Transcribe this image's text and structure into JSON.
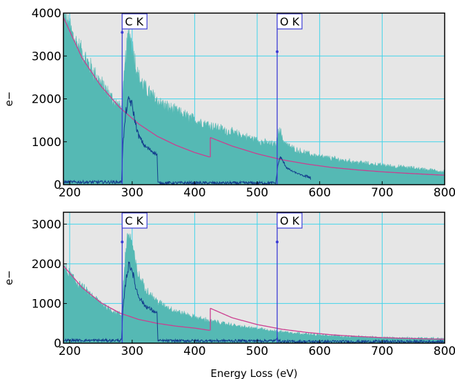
{
  "chart_data": [
    {
      "type": "area",
      "panel": "top",
      "xlabel": "",
      "ylabel": "e−",
      "xlim": [
        190,
        800
      ],
      "ylim": [
        0,
        4000
      ],
      "x_ticks": [
        "200",
        "300",
        "400",
        "500",
        "600",
        "700",
        "800"
      ],
      "y_ticks": [
        "0",
        "1000",
        "2000",
        "3000",
        "4000"
      ],
      "grid": true,
      "edges": [
        {
          "label": "C K",
          "energy": 284,
          "marker_value": 3550
        },
        {
          "label": "O K",
          "energy": 532,
          "marker_value": 3100
        }
      ],
      "series": [
        {
          "kind": "spectrum",
          "color": "#55b9b4",
          "x": [
            190,
            210,
            230,
            250,
            270,
            283,
            286,
            290,
            295,
            300,
            305,
            310,
            320,
            330,
            340,
            350,
            370,
            400,
            425,
            450,
            480,
            510,
            530,
            536,
            540,
            550,
            560,
            580,
            600,
            640,
            680,
            720,
            760,
            800
          ],
          "values": [
            3900,
            3300,
            2800,
            2350,
            1950,
            1750,
            2200,
            3000,
            3550,
            3250,
            2850,
            2500,
            2250,
            2100,
            1950,
            1850,
            1700,
            1500,
            1380,
            1250,
            1120,
            980,
            920,
            1350,
            1050,
            900,
            820,
            720,
            650,
            560,
            480,
            420,
            370,
            300
          ]
        },
        {
          "kind": "background-fit",
          "color": "#cc3d8f",
          "x": [
            190,
            220,
            250,
            280,
            310,
            340,
            370,
            400,
            425
          ],
          "values": [
            3900,
            2950,
            2300,
            1800,
            1420,
            1130,
            920,
            750,
            640
          ]
        },
        {
          "kind": "background-fit",
          "color": "#cc3d8f",
          "x": [
            425,
            460,
            500,
            540,
            580,
            620,
            660,
            700,
            740,
            780,
            800
          ],
          "values": [
            1100,
            900,
            720,
            580,
            480,
            400,
            345,
            300,
            265,
            235,
            220
          ]
        },
        {
          "kind": "edge-signal",
          "color": "#123c8c",
          "x": [
            190,
            240,
            283,
            285,
            290,
            295,
            300,
            305,
            310,
            320,
            330,
            340,
            341,
            400,
            530,
            533,
            537,
            541,
            547,
            555,
            565,
            575,
            585,
            586
          ],
          "values": [
            60,
            60,
            60,
            900,
            1700,
            2000,
            1850,
            1450,
            1150,
            900,
            800,
            700,
            40,
            40,
            40,
            450,
            650,
            550,
            400,
            320,
            260,
            200,
            180,
            30
          ]
        }
      ]
    },
    {
      "type": "area",
      "panel": "bottom",
      "xlabel": "Energy Loss (eV)",
      "ylabel": "e−",
      "xlim": [
        190,
        800
      ],
      "ylim": [
        0,
        3300
      ],
      "x_ticks": [
        "200",
        "300",
        "400",
        "500",
        "600",
        "700",
        "800"
      ],
      "y_ticks": [
        "0",
        "1000",
        "2000",
        "3000"
      ],
      "grid": true,
      "edges": [
        {
          "label": "C K",
          "energy": 284,
          "marker_value": 2550
        },
        {
          "label": "O K",
          "energy": 532,
          "marker_value": 2550
        }
      ],
      "series": [
        {
          "kind": "spectrum",
          "color": "#55b9b4",
          "x": [
            190,
            210,
            230,
            250,
            270,
            283,
            286,
            290,
            295,
            300,
            305,
            310,
            320,
            330,
            340,
            350,
            370,
            400,
            425,
            450,
            480,
            510,
            530,
            550,
            580,
            600,
            640,
            680,
            720,
            760,
            800
          ],
          "values": [
            1900,
            1550,
            1250,
            1000,
            800,
            700,
            1500,
            2400,
            2750,
            2500,
            2000,
            1700,
            1400,
            1200,
            1050,
            950,
            800,
            650,
            560,
            480,
            400,
            340,
            300,
            270,
            230,
            200,
            170,
            150,
            130,
            120,
            110
          ]
        },
        {
          "kind": "background-fit",
          "color": "#cc3d8f",
          "x": [
            190,
            220,
            250,
            280,
            310,
            340,
            370,
            400,
            425
          ],
          "values": [
            1950,
            1400,
            1020,
            760,
            600,
            500,
            430,
            380,
            320
          ]
        },
        {
          "kind": "background-fit",
          "color": "#cc3d8f",
          "x": [
            425,
            460,
            500,
            540,
            580,
            620,
            660,
            700,
            740,
            780,
            800
          ],
          "values": [
            880,
            640,
            470,
            350,
            270,
            210,
            170,
            140,
            120,
            105,
            100
          ]
        },
        {
          "kind": "edge-signal",
          "color": "#123c8c",
          "x": [
            190,
            240,
            283,
            285,
            290,
            295,
            300,
            305,
            310,
            320,
            330,
            340,
            341,
            420,
            530,
            532,
            534,
            540,
            800
          ],
          "values": [
            70,
            70,
            70,
            800,
            1600,
            2000,
            1850,
            1450,
            1200,
            950,
            850,
            750,
            60,
            60,
            60,
            180,
            60,
            40,
            40
          ]
        }
      ]
    }
  ]
}
